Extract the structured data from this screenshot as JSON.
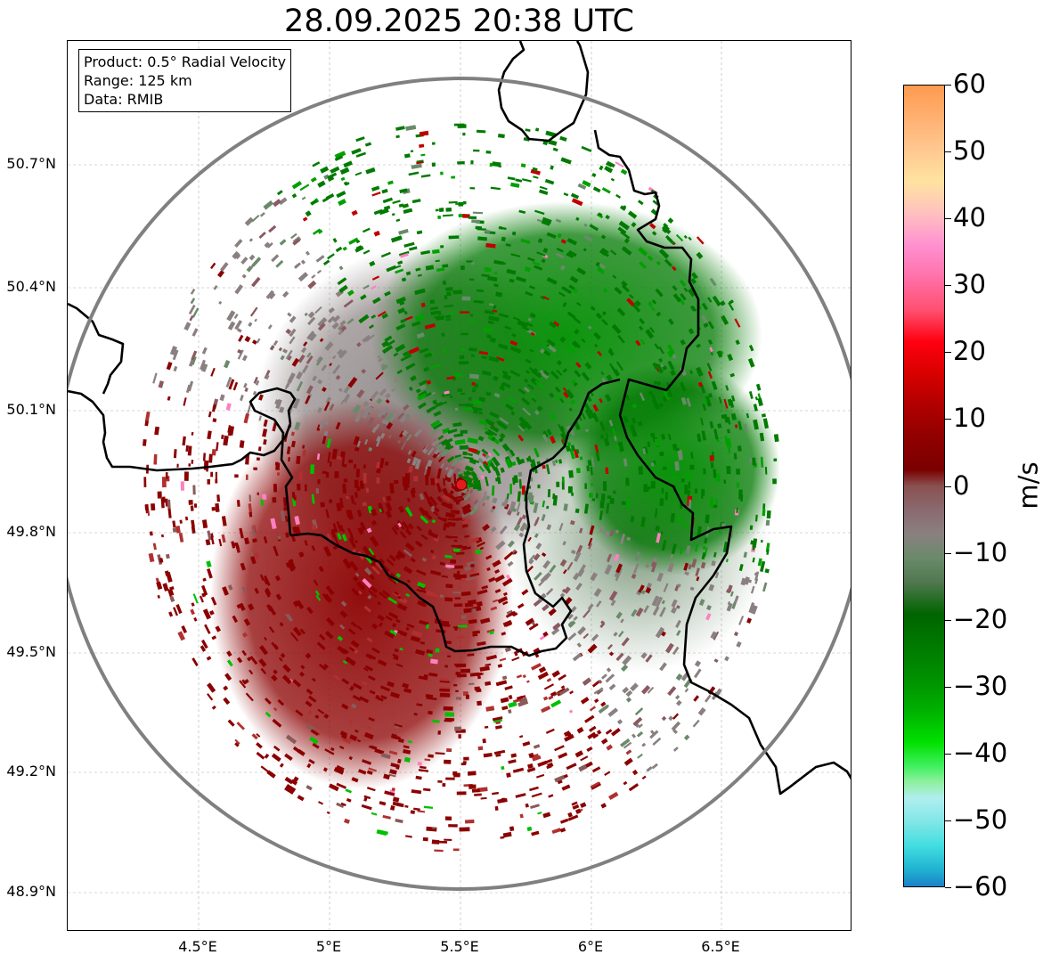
{
  "title": "28.09.2025 20:38 UTC",
  "info": {
    "product": "Product: 0.5° Radial Velocity",
    "range": "Range: 125 km",
    "data": "Data: RMIB"
  },
  "axes": {
    "lat_labels": [
      "50.7°N",
      "50.4°N",
      "50.1°N",
      "49.8°N",
      "49.5°N",
      "49.2°N",
      "48.9°N"
    ],
    "lon_labels": [
      "4.5°E",
      "5°E",
      "5.5°E",
      "6°E",
      "6.5°E"
    ]
  },
  "colorbar": {
    "unit": "m/s",
    "tick_labels": [
      "60",
      "50",
      "40",
      "30",
      "20",
      "10",
      "0",
      "−10",
      "−20",
      "−30",
      "−40",
      "−50",
      "−60"
    ],
    "range": [
      -60,
      60
    ],
    "colors": {
      "range_ring": "#808080",
      "radar_site": "#e41a1c",
      "inbound_strong": "#00a800",
      "inbound": "#007a00",
      "near_zero": "#8a8a82",
      "outbound": "#8b0000",
      "outbound_light": "#b03030"
    }
  },
  "radar_site_icon": "red-dot-icon"
}
